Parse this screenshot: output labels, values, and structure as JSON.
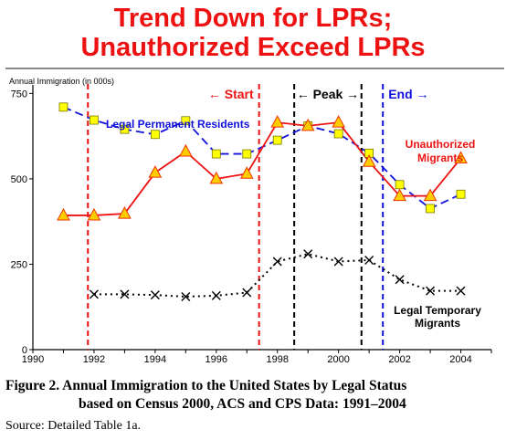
{
  "title_lines": [
    "Trend Down for LPRs;",
    "Unauthorized Exceed LPRs"
  ],
  "caption": {
    "line1": "Figure 2.  Annual Immigration to the United States by Legal Status",
    "line2": "based on Census 2000, ACS and CPS Data:  1991–2004"
  },
  "source": "Source:  Detailed Table 1a.",
  "colors": {
    "title": "#ee1111",
    "lpr_line": "#1111dd",
    "lpr_marker_fill": "#ffff00",
    "unauthorized_line": "#ee1111",
    "unauthorized_marker_fill": "#ffcc00",
    "temporary_line": "#000000",
    "start_marker": "#ee1111",
    "peak_marker": "#000000",
    "end_marker": "#1111dd"
  },
  "chart_data": {
    "type": "line",
    "ylabel": "Annual Immigration (in 000s)",
    "xlim": [
      1990,
      2005
    ],
    "ylim": [
      0,
      775
    ],
    "x_ticks": [
      1990,
      1992,
      1994,
      1996,
      1998,
      2000,
      2002,
      2004
    ],
    "y_ticks": [
      0,
      250,
      500,
      750
    ],
    "grid": false,
    "series": [
      {
        "name": "Legal Permanent Residents",
        "style": "dashed",
        "marker": "square",
        "x": [
          1991,
          1992,
          1993,
          1994,
          1995,
          1996,
          1997,
          1998,
          1999,
          2000,
          2001,
          2002,
          2003,
          2004
        ],
        "values": [
          710,
          672,
          645,
          630,
          670,
          573,
          573,
          613,
          655,
          632,
          575,
          483,
          413,
          455
        ]
      },
      {
        "name": "Unauthorized Migrants",
        "label_lines": [
          "Unauthorized",
          "Migrants"
        ],
        "style": "solid",
        "marker": "triangle",
        "x": [
          1991,
          1992,
          1993,
          1994,
          1995,
          1996,
          1997,
          1998,
          1999,
          2000,
          2001,
          2002,
          2003,
          2004
        ],
        "values": [
          393,
          393,
          398,
          518,
          580,
          500,
          515,
          665,
          655,
          665,
          550,
          450,
          450,
          560
        ]
      },
      {
        "name": "Legal Temporary Migrants",
        "label_lines": [
          "Legal Temporary",
          "Migrants"
        ],
        "style": "dotted",
        "marker": "x",
        "x": [
          1992,
          1993,
          1994,
          1995,
          1996,
          1997,
          1998,
          1999,
          2000,
          2001,
          2002,
          2003,
          2004
        ],
        "values": [
          162,
          162,
          160,
          155,
          158,
          167,
          258,
          280,
          258,
          262,
          205,
          172,
          172
        ]
      }
    ],
    "annotations": {
      "start": {
        "label": "Start",
        "arrow": "←",
        "lines_x": [
          1991.8,
          1997.4
        ]
      },
      "peak": {
        "label": "Peak",
        "arrow_left": "←",
        "arrow_right": "→",
        "lines_x": [
          1998.55,
          2000.75
        ]
      },
      "end": {
        "label": "End",
        "arrow": "→",
        "lines_x": [
          2001.45
        ]
      }
    }
  }
}
